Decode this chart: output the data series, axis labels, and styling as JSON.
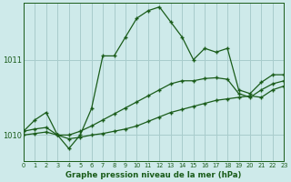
{
  "title": "Graphe pression niveau de la mer (hPa)",
  "bg_color": "#ceeaea",
  "grid_color": "#a8cccc",
  "line_color": "#1a5c1a",
  "xlim": [
    0,
    23
  ],
  "ylim": [
    1009.65,
    1011.75
  ],
  "xticks": [
    0,
    1,
    2,
    3,
    4,
    5,
    6,
    7,
    8,
    9,
    10,
    11,
    12,
    13,
    14,
    15,
    16,
    17,
    18,
    19,
    20,
    21,
    22,
    23
  ],
  "yticks": [
    1010,
    1011
  ],
  "series": {
    "main": {
      "x": [
        0,
        1,
        2,
        3,
        4,
        5,
        6,
        7,
        8,
        9,
        10,
        11,
        12,
        13,
        14,
        15,
        16,
        17,
        18,
        19,
        20,
        21,
        22,
        23
      ],
      "y": [
        1010.05,
        1010.2,
        1010.3,
        1010.0,
        1009.82,
        1010.0,
        1010.35,
        1011.05,
        1011.05,
        1011.3,
        1011.55,
        1011.65,
        1011.7,
        1011.5,
        1011.3,
        1011.0,
        1011.15,
        1011.1,
        1011.15,
        1010.6,
        1010.55,
        1010.7,
        1010.8,
        1010.8
      ]
    },
    "line2": {
      "x": [
        0,
        1,
        2,
        3,
        4,
        5,
        6,
        7,
        8,
        9,
        10,
        11,
        12,
        13,
        14,
        15,
        16,
        17,
        18,
        19,
        20,
        21,
        22,
        23
      ],
      "y": [
        1010.0,
        1010.02,
        1010.04,
        1010.0,
        1009.95,
        1009.97,
        1010.0,
        1010.02,
        1010.05,
        1010.08,
        1010.12,
        1010.18,
        1010.24,
        1010.3,
        1010.34,
        1010.38,
        1010.42,
        1010.46,
        1010.48,
        1010.5,
        1010.52,
        1010.5,
        1010.6,
        1010.65
      ]
    },
    "line3": {
      "x": [
        0,
        1,
        2,
        3,
        4,
        5,
        6,
        7,
        8,
        9,
        10,
        11,
        12,
        13,
        14,
        15,
        16,
        17,
        18,
        19,
        20,
        21,
        22,
        23
      ],
      "y": [
        1010.05,
        1010.08,
        1010.1,
        1010.0,
        1010.0,
        1010.05,
        1010.12,
        1010.2,
        1010.28,
        1010.36,
        1010.44,
        1010.52,
        1010.6,
        1010.68,
        1010.72,
        1010.72,
        1010.75,
        1010.76,
        1010.74,
        1010.55,
        1010.5,
        1010.6,
        1010.68,
        1010.72
      ]
    }
  }
}
